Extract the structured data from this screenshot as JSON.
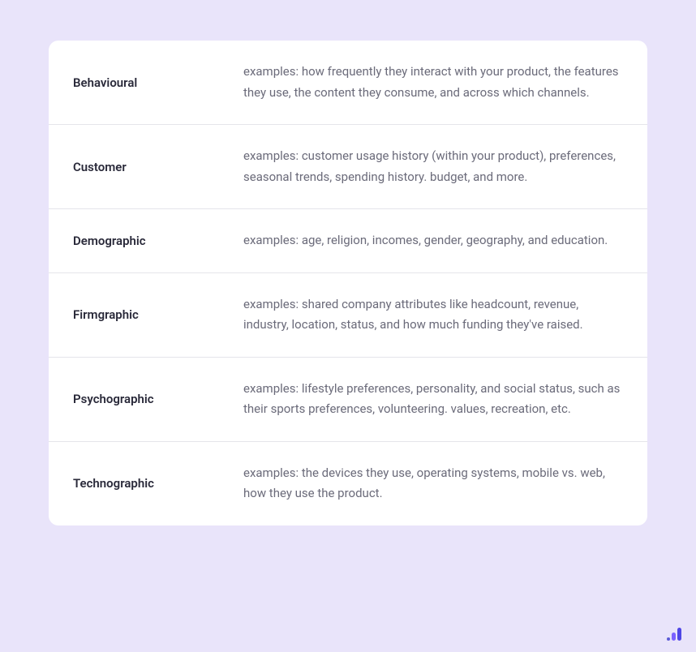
{
  "styling": {
    "page_background": "#e9e4fa",
    "card_background": "#ffffff",
    "card_border_radius": 12,
    "row_border_color": "#e5e5ea",
    "label_color": "#2a2a3a",
    "label_font_weight": 600,
    "label_font_size": 15,
    "desc_color": "#6b6b7a",
    "desc_font_size": 15,
    "desc_line_height": 1.7,
    "label_column_width": 210
  },
  "rows": [
    {
      "label": "Behavioural",
      "desc": "examples: how frequently they interact with your product, the features they use, the content they consume, and across which channels."
    },
    {
      "label": "Customer",
      "desc": "examples: customer usage history (within your product), preferences, seasonal trends, spending history. budget, and more."
    },
    {
      "label": "Demographic",
      "desc": "examples: age, religion, incomes, gender, geography, and education."
    },
    {
      "label": "Firmgraphic",
      "desc": "examples: shared company attributes like headcount, revenue, industry, location, status, and how much funding they've raised."
    },
    {
      "label": "Psychographic",
      "desc": "examples: lifestyle preferences, personality, and social status, such as their sports preferences, volunteering. values, recreation, etc."
    },
    {
      "label": "Technographic",
      "desc": "examples: the devices they use, operating systems, mobile vs. web, how they use the product."
    }
  ],
  "logo": {
    "dot_color": "#5b5bd6",
    "bar1_color": "#7b61ff",
    "bar2_color": "#4f46e5"
  }
}
